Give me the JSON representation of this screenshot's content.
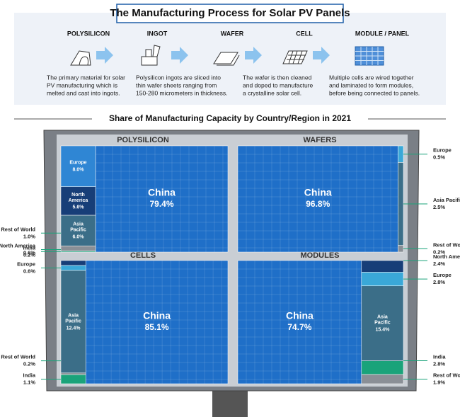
{
  "header": {
    "title": "The Manufacturing Process for Solar PV Panels"
  },
  "process": {
    "steps": [
      {
        "name": "POLYSILICON",
        "description": [
          "The primary material for solar",
          "PV manufacturing which is",
          "melted and cast into ingots."
        ]
      },
      {
        "name": "INGOT",
        "description": [
          "Polysilicon ingots are sliced into",
          "thin wafer sheets ranging from",
          "150-280 micrometers in thickness."
        ]
      },
      {
        "name": "WAFER",
        "description": [
          "The wafer is then cleaned",
          "and doped to manufacture",
          "a crystalline solar cell."
        ]
      },
      {
        "name": "CELL",
        "description": []
      },
      {
        "name": "MODULE / PANEL",
        "description": [
          "Multiple cells are wired together",
          "and laminated to form modules,",
          "before being connected to panels."
        ]
      }
    ]
  },
  "subtitle": "Share of Manufacturing Capacity by Country/Region in 2021",
  "chart_data": [
    {
      "type": "treemap",
      "title": "POLYSILICON",
      "categories": [
        "China",
        "Europe",
        "North America",
        "Asia Pacific",
        "Rest of World",
        "India"
      ],
      "values": [
        79.4,
        8.0,
        5.6,
        6.0,
        1.0,
        0.2
      ],
      "value_labels": [
        "79.4%",
        "8.0%",
        "5.6%",
        "6.0%",
        "1.0%",
        "0.2%"
      ],
      "colors": [
        "#1f6fc8",
        "#2f86d4",
        "#173e78",
        "#3b6e88",
        "#8a8f96",
        "#1aa37a"
      ]
    },
    {
      "type": "treemap",
      "title": "WAFERS",
      "categories": [
        "China",
        "Europe",
        "Asia Pacific",
        "Rest of World"
      ],
      "values": [
        96.8,
        0.5,
        2.5,
        0.2
      ],
      "value_labels": [
        "96.8%",
        "0.5%",
        "2.5%",
        "0.2%"
      ],
      "colors": [
        "#1f6fc8",
        "#3aa8d8",
        "#3b6e88",
        "#8a8f96"
      ]
    },
    {
      "type": "treemap",
      "title": "CELLS",
      "categories": [
        "China",
        "North America",
        "Europe",
        "Asia Pacific",
        "Rest of World",
        "India"
      ],
      "values": [
        85.1,
        0.6,
        0.6,
        12.4,
        0.2,
        1.1
      ],
      "value_labels": [
        "85.1%",
        "0.6%",
        "0.6%",
        "12.4%",
        "0.2%",
        "1.1%"
      ],
      "colors": [
        "#1f6fc8",
        "#173e78",
        "#3aa8d8",
        "#3b6e88",
        "#8a8f96",
        "#1aa37a"
      ]
    },
    {
      "type": "treemap",
      "title": "MODULES",
      "categories": [
        "China",
        "North America",
        "Europe",
        "Asia Pacific",
        "India",
        "Rest of World"
      ],
      "values": [
        74.7,
        2.4,
        2.8,
        15.4,
        2.8,
        1.9
      ],
      "value_labels": [
        "74.7%",
        "2.4%",
        "2.8%",
        "15.4%",
        "2.8%",
        "1.9%"
      ],
      "colors": [
        "#1f6fc8",
        "#173e78",
        "#3aa8d8",
        "#3b6e88",
        "#1aa37a",
        "#8a8f96"
      ]
    }
  ]
}
